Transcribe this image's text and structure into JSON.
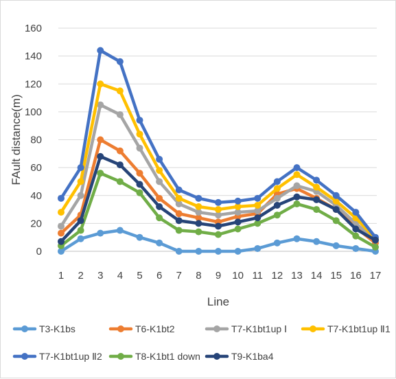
{
  "chart_data": {
    "type": "line",
    "title": "",
    "xlabel": "Line",
    "ylabel": "FAult distance(m)",
    "ylim": [
      0,
      160
    ],
    "yticks": [
      0,
      20,
      40,
      60,
      80,
      100,
      120,
      140,
      160
    ],
    "categories": [
      "1",
      "2",
      "3",
      "4",
      "5",
      "6",
      "7",
      "8",
      "9",
      "10",
      "11",
      "12",
      "13",
      "14",
      "15",
      "16",
      "17"
    ],
    "grid": true,
    "legend_position": "bottom",
    "series": [
      {
        "name": "T3-K1bs",
        "color": "#5B9BD5",
        "values": [
          0,
          9,
          13,
          15,
          10,
          6,
          0,
          0,
          0,
          0,
          2,
          6,
          9,
          7,
          4,
          2,
          0
        ]
      },
      {
        "name": "T6-K1bt2",
        "color": "#ED7D31",
        "values": [
          13,
          26,
          80,
          72,
          56,
          38,
          27,
          24,
          21,
          25,
          27,
          41,
          45,
          38,
          30,
          17,
          6
        ]
      },
      {
        "name": "T7-K1bt1up Ⅰ",
        "color": "#A5A5A5",
        "values": [
          18,
          40,
          105,
          98,
          74,
          50,
          34,
          28,
          26,
          28,
          29,
          38,
          47,
          43,
          33,
          20,
          8
        ]
      },
      {
        "name": "T7-K1bt1up Ⅱ1",
        "color": "#FFC000",
        "values": [
          28,
          50,
          120,
          115,
          84,
          58,
          38,
          32,
          30,
          32,
          33,
          45,
          55,
          46,
          36,
          24,
          9
        ]
      },
      {
        "name": "T7-K1bt1up Ⅱ2",
        "color": "#4472C4",
        "values": [
          38,
          60,
          144,
          136,
          94,
          66,
          44,
          38,
          35,
          36,
          38,
          50,
          60,
          51,
          40,
          28,
          10
        ]
      },
      {
        "name": "T8-K1bt1 down",
        "color": "#70AD47",
        "values": [
          4,
          15,
          56,
          50,
          42,
          24,
          15,
          14,
          12,
          16,
          20,
          26,
          34,
          30,
          22,
          11,
          3
        ]
      },
      {
        "name": "T9-K1ba4",
        "color": "#264478",
        "values": [
          7,
          22,
          68,
          62,
          48,
          32,
          22,
          20,
          18,
          21,
          24,
          33,
          39,
          37,
          30,
          16,
          8
        ]
      }
    ]
  }
}
